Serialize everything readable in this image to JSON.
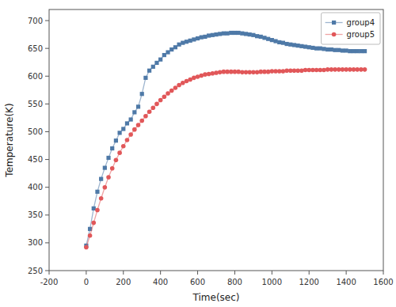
{
  "chart_data": {
    "type": "line",
    "xlabel": "Time(sec)",
    "ylabel": "Temperature(K)",
    "x": [
      0,
      20,
      40,
      60,
      80,
      100,
      120,
      140,
      160,
      180,
      200,
      220,
      240,
      260,
      280,
      300,
      320,
      340,
      360,
      380,
      400,
      420,
      440,
      460,
      480,
      500,
      520,
      540,
      560,
      580,
      600,
      620,
      640,
      660,
      680,
      700,
      720,
      740,
      760,
      780,
      800,
      820,
      840,
      860,
      880,
      900,
      920,
      940,
      960,
      980,
      1000,
      1020,
      1040,
      1060,
      1080,
      1100,
      1120,
      1140,
      1160,
      1180,
      1200,
      1220,
      1240,
      1260,
      1280,
      1300,
      1320,
      1340,
      1360,
      1380,
      1400,
      1420,
      1440,
      1460,
      1480,
      1500
    ],
    "series": [
      {
        "name": "group4",
        "marker": "square",
        "values": [
          295,
          325,
          362,
          392,
          415,
          435,
          453,
          470,
          484,
          498,
          505,
          515,
          522,
          535,
          545,
          568,
          597,
          610,
          617,
          624,
          630,
          638,
          643,
          648,
          652,
          657,
          660,
          662,
          664,
          666,
          668,
          670,
          671,
          673,
          674,
          675,
          676,
          677,
          677,
          678,
          678,
          678,
          677,
          676,
          675,
          674,
          672,
          671,
          669,
          667,
          665,
          663,
          661,
          660,
          658,
          657,
          656,
          655,
          654,
          653,
          652,
          651,
          650,
          650,
          649,
          648,
          648,
          647,
          647,
          646,
          646,
          645,
          645,
          645,
          645,
          645
        ]
      },
      {
        "name": "group5",
        "marker": "circle",
        "values": [
          292,
          313,
          336,
          359,
          380,
          400,
          418,
          434,
          449,
          462,
          474,
          485,
          495,
          504,
          512,
          520,
          528,
          536,
          543,
          550,
          557,
          563,
          569,
          574,
          579,
          584,
          588,
          591,
          594,
          597,
          599,
          601,
          603,
          604,
          605,
          606,
          607,
          608,
          608,
          608,
          608,
          608,
          607,
          607,
          607,
          607,
          607,
          608,
          608,
          608,
          609,
          609,
          609,
          609,
          610,
          610,
          610,
          610,
          610,
          611,
          611,
          611,
          611,
          611,
          611,
          612,
          612,
          612,
          612,
          612,
          612,
          612,
          612,
          612,
          612,
          612
        ]
      }
    ],
    "xlim": [
      -200,
      1600
    ],
    "ylim": [
      250,
      720
    ],
    "xticks": [
      -200,
      0,
      200,
      400,
      600,
      800,
      1000,
      1200,
      1400,
      1600
    ],
    "yticks": [
      250,
      300,
      350,
      400,
      450,
      500,
      550,
      600,
      650,
      700
    ],
    "grid": false,
    "legend": "upper-right"
  }
}
